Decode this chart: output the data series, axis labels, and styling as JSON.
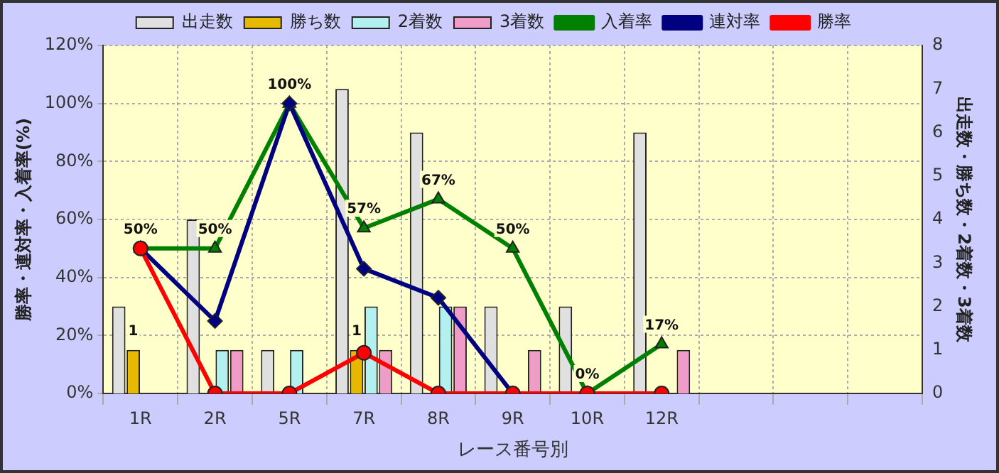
{
  "chart_data": {
    "type": "bar",
    "xlabel": "レース番号別",
    "ylabel": "勝率・連対率・入着率(%)",
    "y2label": "出走数・勝ち数・2着数・3着数",
    "categories": [
      "1R",
      "2R",
      "5R",
      "7R",
      "8R",
      "9R",
      "10R",
      "12R",
      null,
      null,
      null
    ],
    "series": [
      {
        "name": "出走数",
        "axis": "y2",
        "color": "#e0e0e0",
        "values": [
          2,
          4,
          1,
          7,
          6,
          2,
          2,
          6,
          null,
          null,
          null
        ]
      },
      {
        "name": "勝ち数",
        "axis": "y2",
        "color": "#e6b800",
        "values": [
          1,
          0,
          0,
          1,
          0,
          0,
          0,
          0,
          null,
          null,
          null
        ],
        "value_labels": [
          "1",
          null,
          null,
          "1",
          null,
          null,
          null,
          null,
          null,
          null,
          null
        ]
      },
      {
        "name": "2着数",
        "axis": "y2",
        "color": "#b3f0f0",
        "values": [
          0,
          1,
          1,
          2,
          2,
          0,
          0,
          0,
          null,
          null,
          null
        ]
      },
      {
        "name": "3着数",
        "axis": "y2",
        "color": "#f09cc8",
        "values": [
          0,
          1,
          0,
          1,
          2,
          1,
          0,
          1,
          null,
          null,
          null
        ]
      },
      {
        "name": "入着率",
        "type": "line",
        "color": "#008000",
        "marker": "triangle",
        "values": [
          50,
          50,
          100,
          57,
          67,
          50,
          0,
          17,
          null,
          null,
          null
        ],
        "value_labels": [
          "50%",
          "50%",
          "100%",
          "57%",
          "67%",
          "50%",
          "0%",
          "17%",
          null,
          null,
          null
        ]
      },
      {
        "name": "連対率",
        "type": "line",
        "color": "#000080",
        "marker": "diamond",
        "values": [
          50,
          25,
          100,
          43,
          33,
          0,
          null,
          null,
          null,
          null,
          null
        ]
      },
      {
        "name": "勝率",
        "type": "line",
        "color": "#ff0000",
        "marker": "circle",
        "values": [
          50,
          0,
          0,
          14,
          0,
          0,
          0,
          0,
          null,
          null,
          null
        ]
      }
    ],
    "ylim": [
      0,
      120
    ],
    "yticks": [
      {
        "value": 0,
        "label": "0%"
      },
      {
        "value": 20,
        "label": "20%"
      },
      {
        "value": 40,
        "label": "40%"
      },
      {
        "value": 60,
        "label": "60%"
      },
      {
        "value": 80,
        "label": "80%"
      },
      {
        "value": 100,
        "label": "100%"
      },
      {
        "value": 120,
        "label": "120%"
      }
    ],
    "y2lim": [
      0,
      8
    ],
    "y2ticks": [
      0,
      1,
      2,
      3,
      4,
      5,
      6,
      7,
      8
    ],
    "grid": true,
    "legend": "top"
  }
}
